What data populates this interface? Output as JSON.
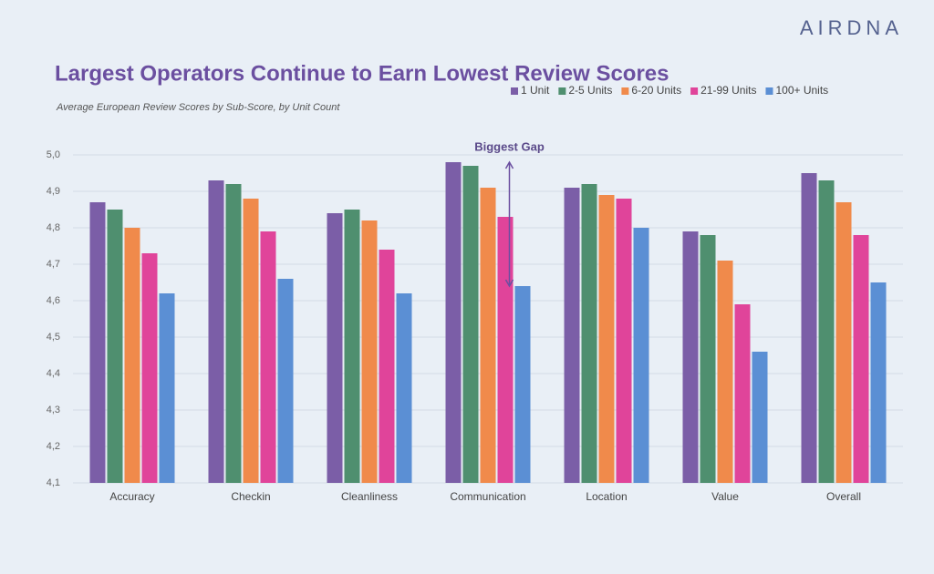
{
  "brand": "AIRDNA",
  "chart_data": {
    "type": "bar",
    "title": "Largest Operators Continue to Earn Lowest Review Scores",
    "subtitle": "Average European Review Scores by Sub-Score, by Unit Count",
    "annotation": "Biggest Gap",
    "categories": [
      "Accuracy",
      "Checkin",
      "Cleanliness",
      "Communication",
      "Location",
      "Value",
      "Overall"
    ],
    "series": [
      {
        "name": "1 Unit",
        "color": "#7b5ea7",
        "values": [
          4.87,
          4.93,
          4.84,
          4.98,
          4.91,
          4.79,
          4.95
        ]
      },
      {
        "name": "2-5 Units",
        "color": "#4f8f6f",
        "values": [
          4.85,
          4.92,
          4.85,
          4.97,
          4.92,
          4.78,
          4.93
        ]
      },
      {
        "name": "6-20 Units",
        "color": "#f08a4b",
        "values": [
          4.8,
          4.88,
          4.82,
          4.91,
          4.89,
          4.71,
          4.87
        ]
      },
      {
        "name": "21-99 Units",
        "color": "#e0449a",
        "values": [
          4.73,
          4.79,
          4.74,
          4.83,
          4.88,
          4.59,
          4.78
        ]
      },
      {
        "name": "100+ Units",
        "color": "#5b8fd4",
        "values": [
          4.62,
          4.66,
          4.62,
          4.64,
          4.8,
          4.46,
          4.65
        ]
      }
    ],
    "ylim": [
      4.1,
      5.0
    ],
    "yticks": [
      {
        "value": 4.1,
        "label": "4,1"
      },
      {
        "value": 4.2,
        "label": "4,2"
      },
      {
        "value": 4.3,
        "label": "4,3"
      },
      {
        "value": 4.4,
        "label": "4,4"
      },
      {
        "value": 4.5,
        "label": "4,5"
      },
      {
        "value": 4.6,
        "label": "4,6"
      },
      {
        "value": 4.7,
        "label": "4,7"
      },
      {
        "value": 4.8,
        "label": "4,8"
      },
      {
        "value": 4.9,
        "label": "4,9"
      },
      {
        "value": 5.0,
        "label": "5,0"
      }
    ],
    "grid": true
  }
}
